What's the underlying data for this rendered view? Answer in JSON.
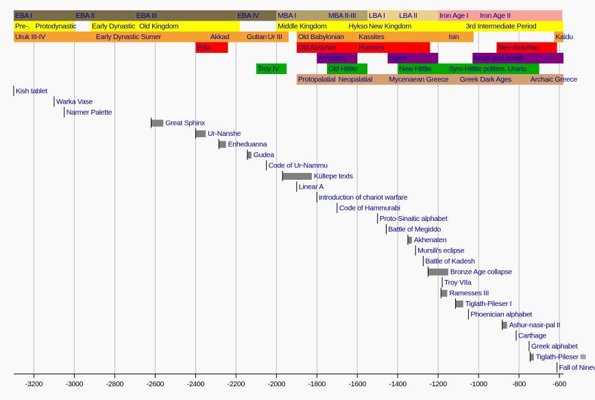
{
  "chart_data": {
    "type": "timeline",
    "xlim": [
      -3300,
      -580
    ],
    "xticks": [
      -3200,
      -3000,
      -2800,
      -2600,
      -2400,
      -2200,
      -2000,
      -1800,
      -1600,
      -1400,
      -1200,
      -1000,
      -800,
      -600
    ],
    "grid": true,
    "rows": [
      {
        "bars": [
          {
            "label": "EBA I",
            "start": -3300,
            "end": -3000,
            "color": "#7a6c48"
          },
          {
            "label": "EBA II",
            "start": -3000,
            "end": -2700,
            "color": "#7a6c48"
          },
          {
            "label": "EBA III",
            "start": -2700,
            "end": -2200,
            "color": "#7a6c48"
          },
          {
            "label": "EBA IV",
            "start": -2200,
            "end": -2000,
            "color": "#7a6c48"
          },
          {
            "label": "MBA I",
            "start": -2000,
            "end": -1750,
            "color": "#b39f6b"
          },
          {
            "label": "MBA II-III",
            "start": -1750,
            "end": -1550,
            "color": "#b39f6b"
          },
          {
            "label": "LBA I",
            "start": -1550,
            "end": -1400,
            "color": "#ecd08e"
          },
          {
            "label": "LBA II",
            "start": -1400,
            "end": -1200,
            "color": "#ecd08e"
          },
          {
            "label": "Iron Age I",
            "start": -1200,
            "end": -1000,
            "color": "#f7a39b"
          },
          {
            "label": "Iron Age II",
            "start": -1000,
            "end": -586,
            "color": "#f7a39b"
          }
        ]
      },
      {
        "bars": [
          {
            "label": "Pre-,",
            "start": -3300,
            "end": -3200,
            "color": "#ffff00"
          },
          {
            "label": "Protodynastic",
            "start": -3200,
            "end": -3000,
            "color": "#ffff00"
          },
          {
            "label": "Early Dynastic",
            "start": -2920,
            "end": -2686,
            "color": "#ffff00"
          },
          {
            "label": "Old Kingdom",
            "start": -2686,
            "end": -2181,
            "color": "#ffff00"
          },
          {
            "label": "Middle Kingdom",
            "start": -2000,
            "end": -1650,
            "color": "#ffff00"
          },
          {
            "label": "Hyksos",
            "start": -1650,
            "end": -1550,
            "color": "#ffff00"
          },
          {
            "label": "New Kingdom",
            "start": -1550,
            "end": -1070,
            "color": "#ffff00"
          },
          {
            "label": "3rd Intermediate Period",
            "start": -1070,
            "end": -580,
            "color": "#ffff00"
          }
        ]
      },
      {
        "bars": [
          {
            "label": "Uruk III-IV",
            "start": -3300,
            "end": -2900,
            "color": "#f5a030"
          },
          {
            "label": "Early Dynastic Sumer",
            "start": -2900,
            "end": -2334,
            "color": "#f5a030"
          },
          {
            "label": "Akkad",
            "start": -2334,
            "end": -2154,
            "color": "#f5a030"
          },
          {
            "label": "Gutian",
            "start": -2154,
            "end": -2050,
            "color": "#f5a030"
          },
          {
            "label": "Ur III",
            "start": -2050,
            "end": -1940,
            "color": "#f5a030"
          },
          {
            "label": "Old Babylonian",
            "start": -1900,
            "end": -1600,
            "color": "#f5a030"
          },
          {
            "label": "Kassites",
            "start": -1600,
            "end": -1155,
            "color": "#f5a030"
          },
          {
            "label": "Isin",
            "start": -1155,
            "end": -1025,
            "color": "#f5a030"
          },
          {
            "label": "Kaldu",
            "start": -626,
            "end": -580,
            "color": "#f5a030"
          }
        ]
      },
      {
        "bars": [
          {
            "label": "Ebla",
            "start": -2400,
            "end": -2240,
            "color": "#ff0000"
          },
          {
            "label": "Old Assyrian",
            "start": -1900,
            "end": -1600,
            "color": "#ff0000"
          },
          {
            "label": "Hurrians",
            "start": -1600,
            "end": -1240,
            "color": "#ff0000"
          },
          {
            "label": "Neo-Assyrian",
            "start": -911,
            "end": -612,
            "color": "#ff0000"
          }
        ]
      },
      {
        "bars": [
          {
            "label": "Amorites",
            "start": -1800,
            "end": -1600,
            "color": "#800080"
          },
          {
            "label": "Ugarit",
            "start": -1450,
            "end": -1200,
            "color": "#800080"
          },
          {
            "label": "Israel and Judah",
            "start": -1030,
            "end": -580,
            "color": "#800080"
          }
        ]
      },
      {
        "bars": [
          {
            "label": "Troy IV",
            "start": -2100,
            "end": -1950,
            "color": "#00aa00"
          },
          {
            "label": "Old Hittite",
            "start": -1750,
            "end": -1550,
            "color": "#00aa00"
          },
          {
            "label": "New Hittite",
            "start": -1400,
            "end": -1155,
            "color": "#00aa00"
          },
          {
            "label": "Syro-Hittite polities, Urartu",
            "start": -1155,
            "end": -700,
            "color": "#00aa00"
          }
        ]
      },
      {
        "bars": [
          {
            "label": "Protopalatial",
            "start": -1900,
            "end": -1700,
            "color": "#d2a070"
          },
          {
            "label": "Neopalatial",
            "start": -1700,
            "end": -1450,
            "color": "#d2a070"
          },
          {
            "label": "Mycenaean Greece",
            "start": -1450,
            "end": -1100,
            "color": "#d2a070"
          },
          {
            "label": "Greek Dark Ages",
            "start": -1100,
            "end": -750,
            "color": "#d2a070"
          },
          {
            "label": "Archaic Greece",
            "start": -750,
            "end": -580,
            "color": "#d2a070"
          }
        ]
      }
    ],
    "events": [
      {
        "label": "Kish tablet",
        "year": -3300
      },
      {
        "label": "Warka Vase",
        "year": -3100
      },
      {
        "label": "Narmer Palette",
        "year": -3050
      },
      {
        "label": "Great Sphinx",
        "start": -2620,
        "end": -2560
      },
      {
        "label": "Ur-Nanshe",
        "start": -2400,
        "end": -2350
      },
      {
        "label": "Enheduanna",
        "start": -2285,
        "end": -2250
      },
      {
        "label": "Gudea",
        "start": -2144,
        "end": -2124
      },
      {
        "label": "Code of Ur-Nammu",
        "year": -2050
      },
      {
        "label": "Kültepe texts",
        "start": -1970,
        "end": -1825
      },
      {
        "label": "Linear A",
        "year": -1900
      },
      {
        "label": "introduction of chariot warfare",
        "year": -1800
      },
      {
        "label": "Code of Hammurabi",
        "year": -1700
      },
      {
        "label": "Proto-Sinaitic alphabet",
        "year": -1500
      },
      {
        "label": "Battle of Megiddo",
        "year": -1457
      },
      {
        "label": "Akhenaten",
        "start": -1350,
        "end": -1330
      },
      {
        "label": "Mursili's eclipse",
        "year": -1312
      },
      {
        "label": "Battle of Kadesh",
        "year": -1274
      },
      {
        "label": "Bronze Age collapse",
        "start": -1250,
        "end": -1150
      },
      {
        "label": "Troy VIIa",
        "year": -1180
      },
      {
        "label": "Ramesses III",
        "start": -1186,
        "end": -1155
      },
      {
        "label": "Tiglath-Pileser I",
        "start": -1114,
        "end": -1076
      },
      {
        "label": "Phoenician alphabet",
        "year": -1050
      },
      {
        "label": "Ashur-nasir-pal II",
        "start": -883,
        "end": -859
      },
      {
        "label": "Carthage",
        "year": -814
      },
      {
        "label": "Greek alphabet",
        "year": -750
      },
      {
        "label": "Tiglath-Pileser III",
        "start": -745,
        "end": -727
      },
      {
        "label": "Fall of Nineveh",
        "year": -612
      }
    ]
  }
}
